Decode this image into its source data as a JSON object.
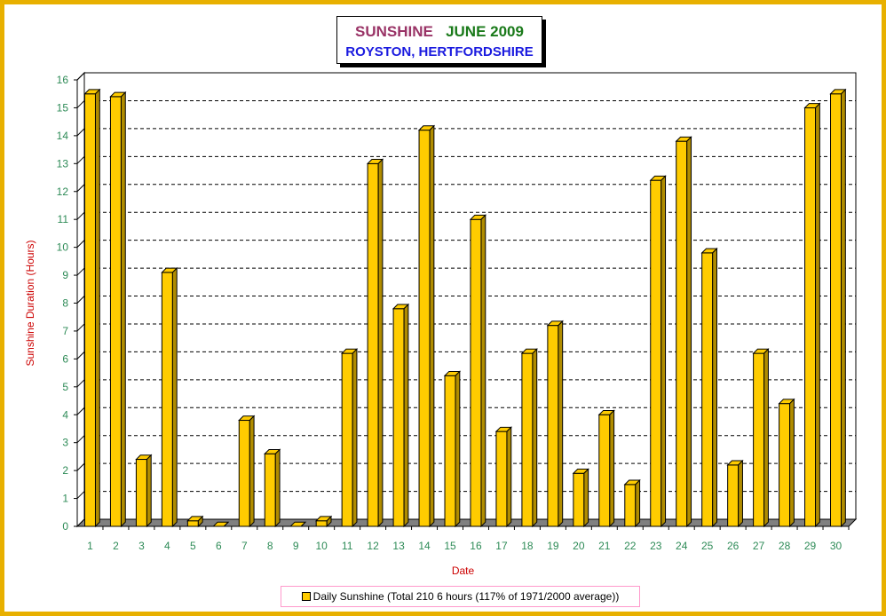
{
  "title": {
    "line1_part1": "SUNSHINE",
    "line1_part2": "JUNE 2009",
    "line2": "ROYSTON, HERTFORDSHIRE"
  },
  "colors": {
    "frame": "#e8b000",
    "bar": "#ffcc00",
    "bar_side": "#b08c00",
    "floor": "#808080",
    "axis_text": "#2e8b57",
    "axis_title": "#cc0000"
  },
  "chart_data": {
    "type": "bar",
    "xlabel": "Date",
    "ylabel": "Sunshine Duration (Hours)",
    "ylim": [
      0,
      16
    ],
    "y_ticks": [
      "0",
      "1",
      "2",
      "3",
      "4",
      "5",
      "6",
      "7",
      "8",
      "9",
      "10",
      "11",
      "12",
      "13",
      "14",
      "15",
      "16"
    ],
    "grid": "horizontal dashed",
    "legend_position": "bottom",
    "categories": [
      "1",
      "2",
      "3",
      "4",
      "5",
      "6",
      "7",
      "8",
      "9",
      "10",
      "11",
      "12",
      "13",
      "14",
      "15",
      "16",
      "17",
      "18",
      "19",
      "20",
      "21",
      "22",
      "23",
      "24",
      "25",
      "26",
      "27",
      "28",
      "29",
      "30"
    ],
    "series": [
      {
        "name": "Daily Sunshine (Total 210 6 hours (117% of 1971/2000 average))",
        "values": [
          15.5,
          15.4,
          2.4,
          9.1,
          0.2,
          0.0,
          3.8,
          2.6,
          0.0,
          0.2,
          6.2,
          13.0,
          7.8,
          14.2,
          5.4,
          11.0,
          3.4,
          6.2,
          7.2,
          1.9,
          4.0,
          1.5,
          12.4,
          13.8,
          9.8,
          2.2,
          6.2,
          4.4,
          15.0,
          15.5
        ]
      }
    ]
  }
}
